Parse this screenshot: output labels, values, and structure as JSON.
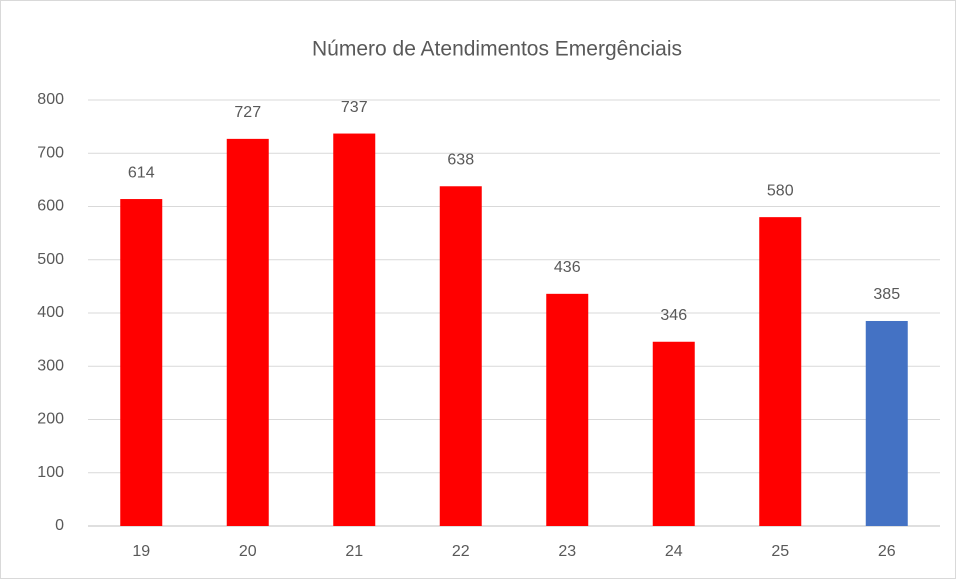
{
  "chart_data": {
    "type": "bar",
    "title": "Número de Atendimentos Emergênciais",
    "categories": [
      "19",
      "20",
      "21",
      "22",
      "23",
      "24",
      "25",
      "26"
    ],
    "values": [
      614,
      727,
      737,
      638,
      436,
      346,
      580,
      385
    ],
    "colors": [
      "#ff0000",
      "#ff0000",
      "#ff0000",
      "#ff0000",
      "#ff0000",
      "#ff0000",
      "#ff0000",
      "#4472c4"
    ],
    "ylim": [
      0,
      800
    ],
    "yticks": [
      0,
      100,
      200,
      300,
      400,
      500,
      600,
      700,
      800
    ],
    "grid": true
  }
}
